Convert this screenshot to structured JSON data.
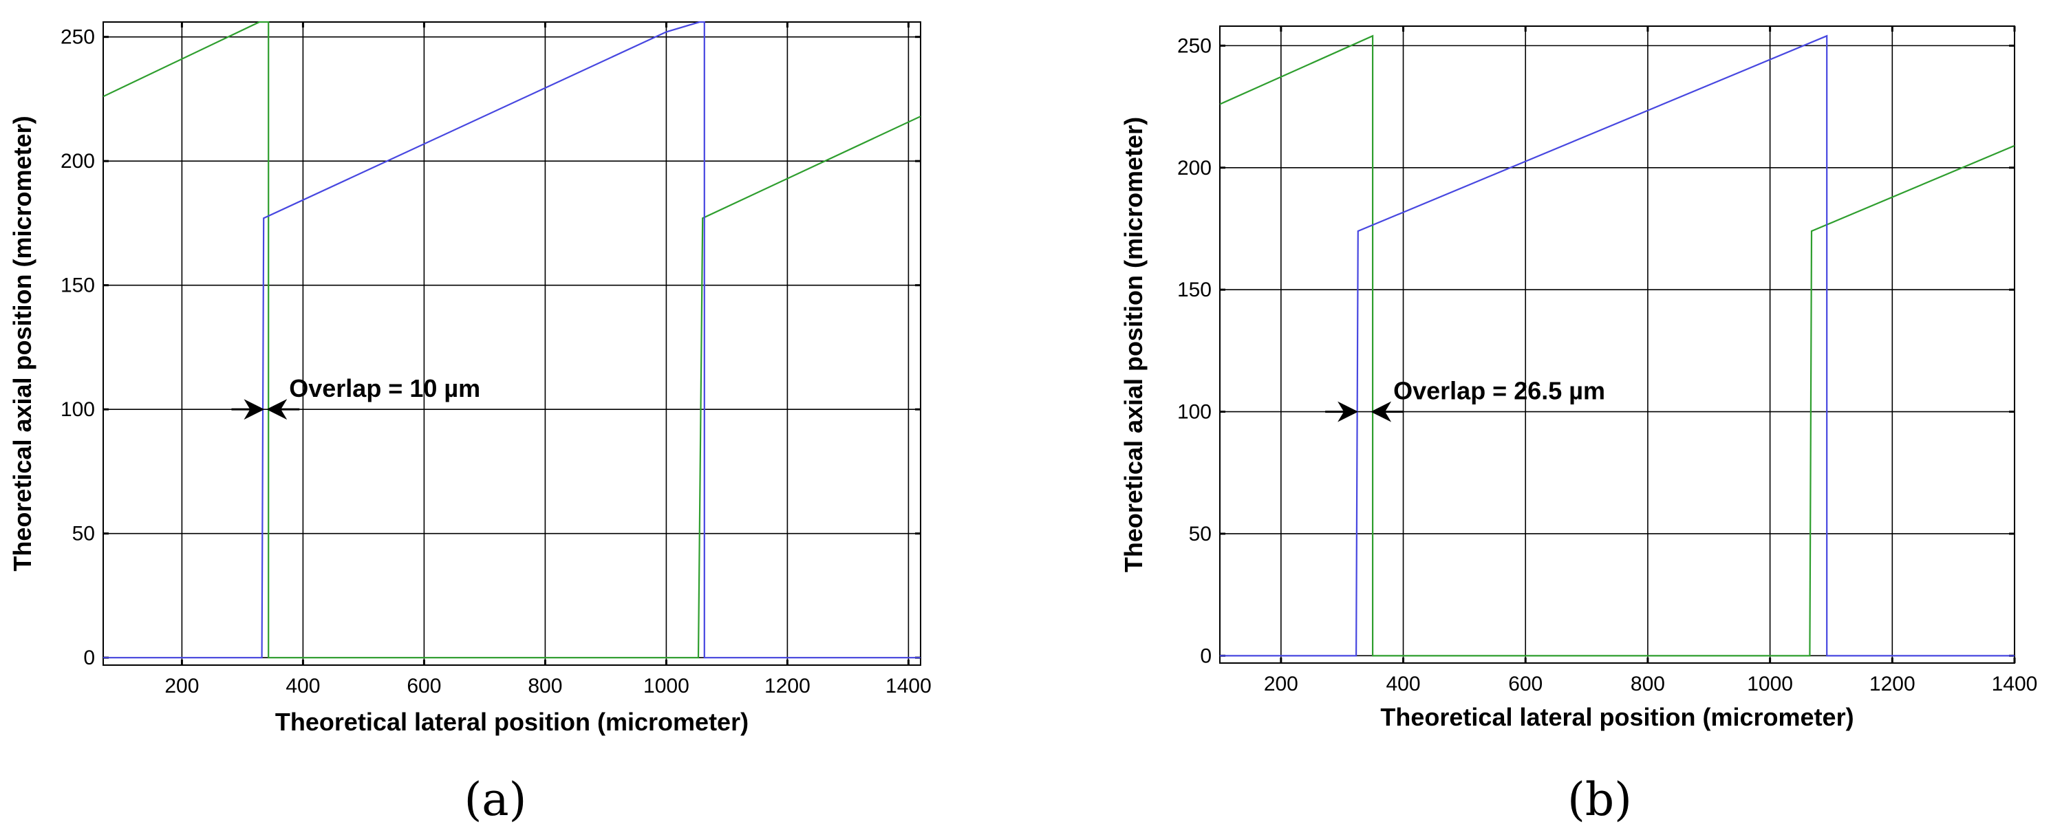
{
  "chart_data": [
    {
      "type": "line",
      "panel_label": "(a)",
      "xlabel": "Theoretical lateral position (micrometer)",
      "ylabel": "Theoretical axial position (micrometer)",
      "xlim": [
        70,
        1420
      ],
      "ylim": [
        -3,
        256
      ],
      "xticks": [
        200,
        400,
        600,
        800,
        1000,
        1200,
        1400
      ],
      "yticks": [
        0,
        50,
        100,
        150,
        200,
        250
      ],
      "grid": true,
      "series": [
        {
          "color": "#2e9e2e",
          "points": [
            [
              70,
              226
            ],
            [
              328,
              256
            ],
            [
              343,
              256
            ],
            [
              343,
              0
            ],
            [
              1053,
              0
            ],
            [
              1060,
              177
            ],
            [
              1420,
              218
            ]
          ]
        },
        {
          "color": "#4747e0",
          "points": [
            [
              70,
              0
            ],
            [
              332,
              0
            ],
            [
              335,
              177
            ],
            [
              1000,
              252
            ],
            [
              1055,
              256
            ],
            [
              1063,
              256
            ],
            [
              1063,
              0
            ],
            [
              1420,
              0
            ]
          ]
        }
      ],
      "annotation": {
        "text": "Overlap = 10 µm",
        "x_left": 333,
        "x_right": 343,
        "y": 100
      }
    },
    {
      "type": "line",
      "panel_label": "(b)",
      "xlabel": "Theoretical lateral position (micrometer)",
      "ylabel": "Theoretical axial position (micrometer)",
      "xlim": [
        100,
        1400
      ],
      "ylim": [
        -3,
        258
      ],
      "xticks": [
        200,
        400,
        600,
        800,
        1000,
        1200,
        1400
      ],
      "yticks": [
        0,
        50,
        100,
        150,
        200,
        250
      ],
      "grid": true,
      "series": [
        {
          "color": "#2e9e2e",
          "points": [
            [
              100,
              226
            ],
            [
              350,
              254
            ],
            [
              350,
              0
            ],
            [
              1065,
              0
            ],
            [
              1068,
              174
            ],
            [
              1400,
              209
            ]
          ]
        },
        {
          "color": "#4747e0",
          "points": [
            [
              100,
              0
            ],
            [
              323,
              0
            ],
            [
              326,
              174
            ],
            [
              1093,
              254
            ],
            [
              1093,
              0
            ],
            [
              1400,
              0
            ]
          ]
        }
      ],
      "annotation": {
        "text": "Overlap = 26.5 µm",
        "x_left": 323,
        "x_right": 350,
        "y": 100
      }
    }
  ]
}
